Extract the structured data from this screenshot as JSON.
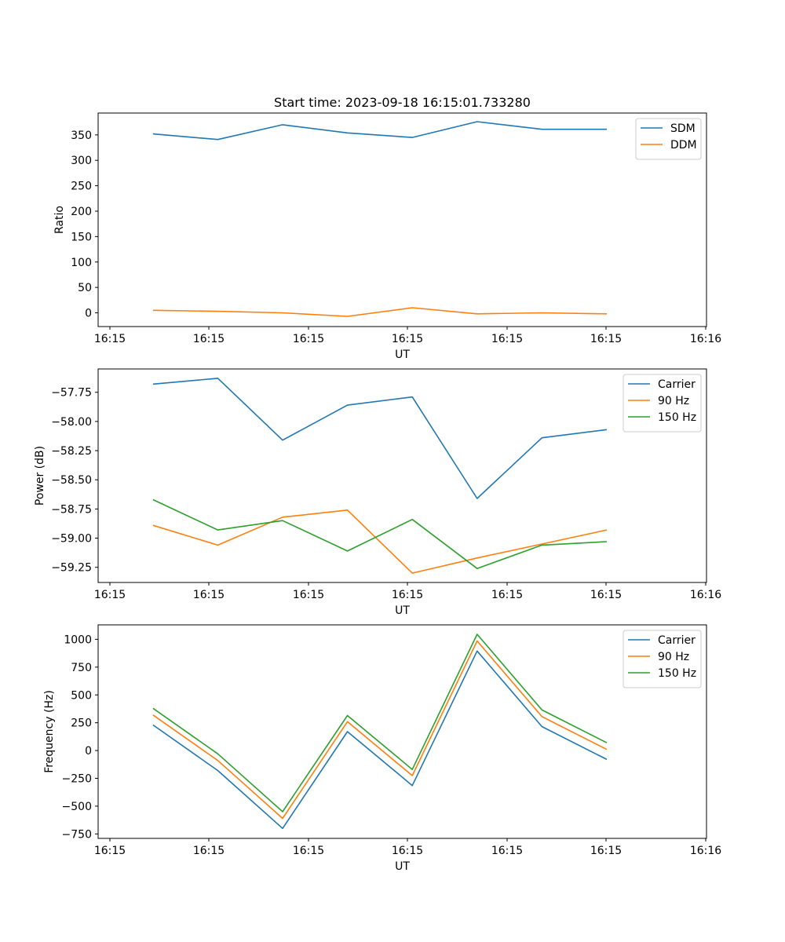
{
  "chart_data": [
    {
      "type": "line",
      "title": "Start time: 2023-09-18 16:15:01.733280",
      "xlabel": "UT",
      "ylabel": "Ratio",
      "xticks": [
        "16:15",
        "16:15",
        "16:15",
        "16:15",
        "16:15",
        "16:15",
        "16:16"
      ],
      "x": [
        0.5,
        1.15,
        1.8,
        2.45,
        3.1,
        3.75,
        4.4,
        5.05
      ],
      "xlim": [
        -0.05,
        6.05
      ],
      "ylim": [
        -27,
        393
      ],
      "yticks": [
        0,
        50,
        100,
        150,
        200,
        250,
        300,
        350
      ],
      "yticklabels": [
        "0",
        "50",
        "100",
        "150",
        "200",
        "250",
        "300",
        "350"
      ],
      "legend": "top-right",
      "series": [
        {
          "name": "SDM",
          "color": "#1f77b4",
          "values": [
            352,
            341,
            370,
            354,
            345,
            376,
            361,
            361
          ]
        },
        {
          "name": "DDM",
          "color": "#ff7f0e",
          "values": [
            5,
            3,
            0,
            -7,
            10,
            -2,
            0,
            -2
          ]
        }
      ]
    },
    {
      "type": "line",
      "title": "",
      "xlabel": "UT",
      "ylabel": "Power (dB)",
      "xticks": [
        "16:15",
        "16:15",
        "16:15",
        "16:15",
        "16:15",
        "16:15",
        "16:16"
      ],
      "x": [
        0.5,
        1.15,
        1.8,
        2.45,
        3.1,
        3.75,
        4.4,
        5.05
      ],
      "xlim": [
        -0.05,
        6.05
      ],
      "ylim": [
        -59.38,
        -57.55
      ],
      "yticks": [
        -59.25,
        -59.0,
        -58.75,
        -58.5,
        -58.25,
        -58.0,
        -57.75
      ],
      "yticklabels": [
        "−59.25",
        "−59.00",
        "−58.75",
        "−58.50",
        "−58.25",
        "−58.00",
        "−57.75"
      ],
      "legend": "top-right",
      "series": [
        {
          "name": "Carrier",
          "color": "#1f77b4",
          "values": [
            -57.68,
            -57.63,
            -58.16,
            -57.86,
            -57.79,
            -58.66,
            -58.14,
            -58.07
          ]
        },
        {
          "name": "90 Hz",
          "color": "#ff7f0e",
          "values": [
            -58.89,
            -59.06,
            -58.82,
            -58.76,
            -59.3,
            -59.17,
            -59.05,
            -58.93
          ]
        },
        {
          "name": "150 Hz",
          "color": "#2ca02c",
          "values": [
            -58.67,
            -58.93,
            -58.85,
            -59.11,
            -58.84,
            -59.26,
            -59.06,
            -59.03
          ]
        }
      ]
    },
    {
      "type": "line",
      "title": "",
      "xlabel": "UT",
      "ylabel": "Frequency (Hz)",
      "xticks": [
        "16:15",
        "16:15",
        "16:15",
        "16:15",
        "16:15",
        "16:15",
        "16:16"
      ],
      "x": [
        0.5,
        1.15,
        1.8,
        2.45,
        3.1,
        3.75,
        4.4,
        5.05
      ],
      "xlim": [
        -0.05,
        6.05
      ],
      "ylim": [
        -790,
        1130
      ],
      "yticks": [
        -750,
        -500,
        -250,
        0,
        250,
        500,
        750,
        1000
      ],
      "yticklabels": [
        "−750",
        "−500",
        "−250",
        "0",
        "250",
        "500",
        "750",
        "1000"
      ],
      "legend": "top-right",
      "series": [
        {
          "name": "Carrier",
          "color": "#1f77b4",
          "values": [
            230,
            -180,
            -700,
            170,
            -315,
            895,
            215,
            -80
          ]
        },
        {
          "name": "90 Hz",
          "color": "#ff7f0e",
          "values": [
            320,
            -90,
            -610,
            260,
            -225,
            985,
            305,
            10
          ]
        },
        {
          "name": "150 Hz",
          "color": "#2ca02c",
          "values": [
            380,
            -30,
            -550,
            315,
            -170,
            1045,
            365,
            70
          ]
        }
      ]
    }
  ]
}
